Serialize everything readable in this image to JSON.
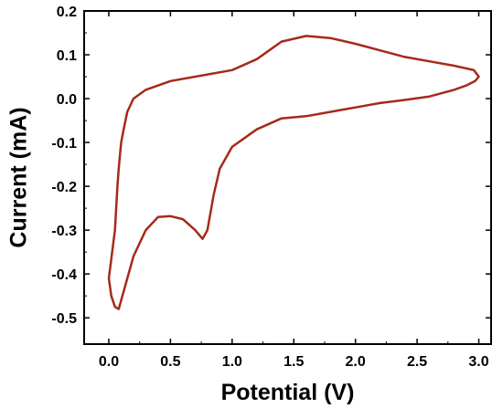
{
  "chart_data": {
    "type": "line",
    "xlabel": "Potential (V)",
    "ylabel": "Current (mA)",
    "xlim": [
      -0.2,
      3.1
    ],
    "ylim": [
      -0.56,
      0.2
    ],
    "x_ticks": [
      0.0,
      0.5,
      1.0,
      1.5,
      2.0,
      2.5,
      3.0
    ],
    "x_tick_labels": [
      "0.0",
      "0.5",
      "1.0",
      "1.5",
      "2.0",
      "2.5",
      "3.0"
    ],
    "y_ticks": [
      0.2,
      0.1,
      0.0,
      -0.1,
      -0.2,
      -0.3,
      -0.4,
      -0.5
    ],
    "y_tick_labels": [
      "0.2",
      "0.1",
      "0.0",
      "-0.1",
      "-0.2",
      "-0.3",
      "-0.4",
      "-0.5"
    ],
    "grid": false,
    "legend": "none",
    "line_color": "#a52a1a",
    "series": [
      {
        "x": [
          0.0,
          0.02,
          0.05,
          0.08,
          0.1,
          0.12,
          0.15,
          0.2,
          0.3,
          0.4,
          0.5,
          0.6,
          0.7,
          0.76,
          0.8,
          0.85,
          0.9,
          1.0,
          1.2,
          1.4,
          1.6,
          1.8,
          2.0,
          2.2,
          2.4,
          2.6,
          2.8,
          2.9,
          2.97,
          3.0,
          2.96,
          2.8,
          2.6,
          2.4,
          2.2,
          2.0,
          1.8,
          1.6,
          1.4,
          1.3,
          1.2,
          1.0,
          0.8,
          0.5,
          0.3,
          0.2,
          0.15,
          0.12,
          0.1,
          0.09,
          0.08,
          0.07,
          0.05,
          0.0
        ],
        "y": [
          -0.41,
          -0.45,
          -0.475,
          -0.48,
          -0.46,
          -0.44,
          -0.41,
          -0.36,
          -0.3,
          -0.27,
          -0.268,
          -0.275,
          -0.3,
          -0.32,
          -0.3,
          -0.22,
          -0.16,
          -0.11,
          -0.07,
          -0.045,
          -0.04,
          -0.03,
          -0.02,
          -0.01,
          -0.003,
          0.005,
          0.02,
          0.03,
          0.04,
          0.05,
          0.065,
          0.075,
          0.085,
          0.095,
          0.11,
          0.125,
          0.138,
          0.143,
          0.13,
          0.11,
          0.09,
          0.065,
          0.055,
          0.04,
          0.02,
          0.0,
          -0.03,
          -0.07,
          -0.1,
          -0.13,
          -0.16,
          -0.2,
          -0.3,
          -0.41
        ]
      }
    ]
  }
}
